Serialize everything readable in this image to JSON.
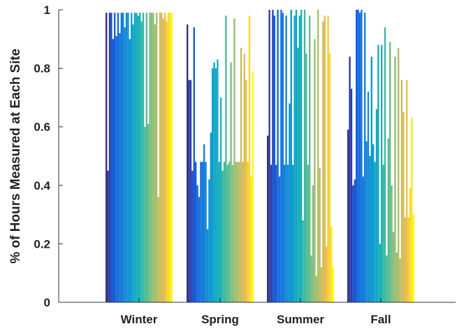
{
  "chart_data": {
    "type": "bar",
    "ylabel": "% of Hours Measured at Each Site",
    "xlabel": "",
    "ylim": [
      0,
      1
    ],
    "yticks": [
      "0",
      "0.2",
      "0.4",
      "0.6",
      "0.8",
      "1"
    ],
    "ytick_values": [
      0,
      0.2,
      0.4,
      0.6,
      0.8,
      1
    ],
    "categories": [
      "Winter",
      "Spring",
      "Summer",
      "Fall"
    ],
    "grid": false,
    "colormap": "parula",
    "bars_per_category": 40,
    "groups": [
      {
        "category": "Winter",
        "values": [
          0.99,
          0.45,
          0.99,
          0.99,
          0.9,
          0.99,
          0.91,
          0.99,
          0.92,
          0.99,
          0.99,
          0.94,
          0.99,
          0.99,
          0.9,
          0.99,
          0.95,
          0.99,
          0.99,
          0.98,
          0.99,
          0.96,
          0.99,
          0.6,
          0.99,
          0.61,
          0.99,
          0.99,
          0.99,
          0.95,
          0.99,
          0.36,
          0.99,
          0.99,
          0.97,
          0.99,
          0.96,
          0.99,
          0.99,
          0.99
        ]
      },
      {
        "category": "Spring",
        "values": [
          0.95,
          0.76,
          0.76,
          0.45,
          0.94,
          0.48,
          0.4,
          0.36,
          0.48,
          0.48,
          0.54,
          0.48,
          0.25,
          0.42,
          0.58,
          0.8,
          0.82,
          0.8,
          0.83,
          0.48,
          0.7,
          0.45,
          0.48,
          0.98,
          0.47,
          0.48,
          0.82,
          0.47,
          0.97,
          0.48,
          0.48,
          0.48,
          0.87,
          0.48,
          0.85,
          0.76,
          0.48,
          0.98,
          0.43,
          0.79
        ]
      },
      {
        "category": "Summer",
        "values": [
          0.57,
          1.0,
          0.47,
          1.0,
          0.98,
          0.47,
          1.0,
          0.43,
          1.0,
          0.99,
          0.47,
          0.98,
          0.47,
          0.68,
          1.0,
          0.47,
          0.98,
          1.0,
          0.87,
          0.98,
          1.0,
          0.28,
          1.0,
          0.85,
          0.47,
          0.98,
          0.16,
          0.4,
          0.9,
          0.09,
          1.0,
          0.46,
          0.12,
          0.96,
          0.98,
          0.19,
          0.98,
          0.85,
          0.26,
          0.12
        ]
      },
      {
        "category": "Fall",
        "values": [
          0.59,
          0.84,
          0.73,
          0.4,
          0.42,
          1.0,
          1.0,
          0.99,
          1.0,
          0.43,
          0.99,
          0.55,
          0.72,
          0.5,
          0.84,
          0.54,
          0.48,
          0.66,
          0.88,
          0.2,
          0.88,
          0.47,
          0.94,
          0.16,
          0.56,
          0.89,
          0.4,
          0.24,
          0.84,
          0.17,
          0.87,
          0.15,
          0.76,
          0.65,
          0.29,
          0.76,
          0.29,
          0.39,
          0.63,
          0.3
        ]
      }
    ]
  }
}
